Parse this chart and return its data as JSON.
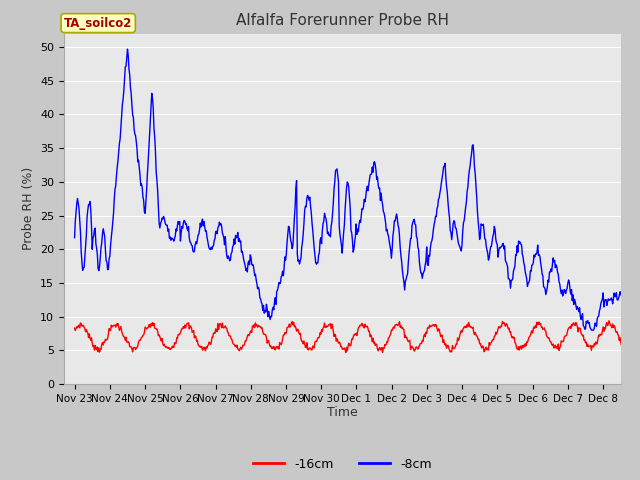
{
  "title": "Alfalfa Forerunner Probe RH",
  "ylabel": "Probe RH (%)",
  "xlabel": "Time",
  "ylim": [
    0,
    52
  ],
  "yticks": [
    0,
    5,
    10,
    15,
    20,
    25,
    30,
    35,
    40,
    45,
    50
  ],
  "fig_bg_color": "#c8c8c8",
  "plot_bg_color": "#e8e8e8",
  "legend_labels": [
    "-16cm",
    "-8cm"
  ],
  "legend_colors": [
    "#ff0000",
    "#0000ff"
  ],
  "annotation_text": "TA_soilco2",
  "annotation_bg": "#ffffc0",
  "annotation_border": "#aaa800",
  "annotation_text_color": "#aa0000",
  "x_tick_labels": [
    "Nov 23",
    "Nov 24",
    "Nov 25",
    "Nov 26",
    "Nov 27",
    "Nov 28",
    "Nov 29",
    "Nov 30",
    "Dec 1",
    "Dec 2",
    "Dec 3",
    "Dec 4",
    "Dec 5",
    "Dec 6",
    "Dec 7",
    "Dec 8"
  ],
  "color_16cm": "#ff0000",
  "color_8cm": "#0000ff",
  "grid_color": "#ffffff",
  "title_fontsize": 11,
  "axis_fontsize": 9,
  "tick_fontsize": 8
}
